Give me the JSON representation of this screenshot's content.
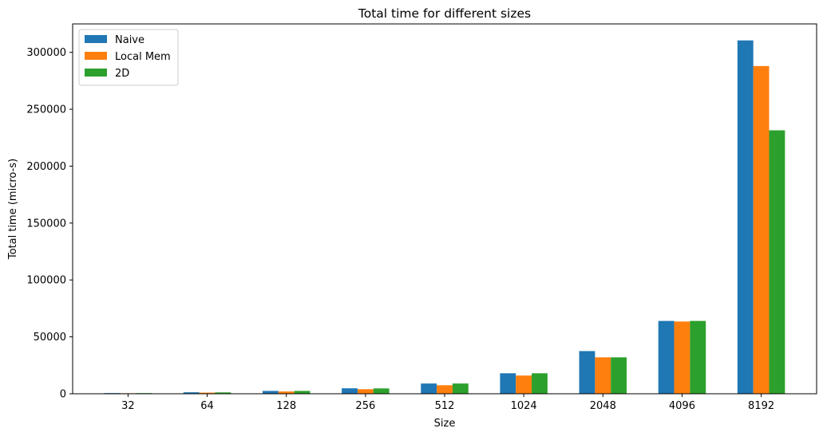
{
  "chart_data": {
    "type": "bar",
    "title": "Total time for different sizes",
    "xlabel": "Size",
    "ylabel": "Total time (micro-s)",
    "categories": [
      "32",
      "64",
      "128",
      "256",
      "512",
      "1024",
      "2048",
      "4096",
      "8192"
    ],
    "series": [
      {
        "name": "Naive",
        "color": "#1f77b4",
        "values": [
          600,
          1300,
          2500,
          4800,
          9000,
          18000,
          37500,
          64000,
          310500
        ]
      },
      {
        "name": "Local Mem",
        "color": "#ff7f0e",
        "values": [
          450,
          1000,
          2000,
          4000,
          7500,
          16000,
          32000,
          63500,
          288000
        ]
      },
      {
        "name": "2D",
        "color": "#2ca02c",
        "values": [
          550,
          1200,
          2500,
          4700,
          9000,
          18000,
          32000,
          64000,
          231500
        ]
      }
    ],
    "ylim": [
      0,
      325000
    ],
    "yticks": [
      0,
      50000,
      100000,
      150000,
      200000,
      250000,
      300000
    ],
    "legend": "upper-left",
    "grid": false
  }
}
